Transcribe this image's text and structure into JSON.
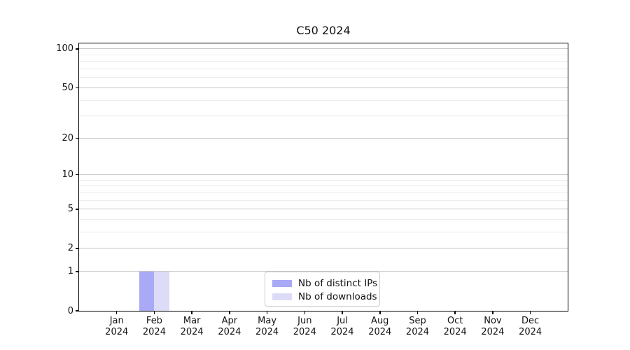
{
  "figure": {
    "title": "C50 2024"
  },
  "style": {
    "background": "#ffffff",
    "spine_color": "#000000",
    "major_grid_color": "#c6c6c6",
    "minor_grid_color": "#ececec",
    "text_color": "#111111",
    "legend_border_color": "#cccccc"
  },
  "y_axis": {
    "tick_values": [
      100,
      50,
      20,
      10,
      5,
      2,
      1,
      0
    ],
    "tick_labels": [
      "100",
      "50",
      "20",
      "10",
      "5",
      "2",
      "1",
      "0"
    ],
    "minor_tick_values": [
      3,
      4,
      6,
      7,
      8,
      9,
      30,
      40,
      60,
      70,
      80,
      90
    ]
  },
  "x_axis": {
    "months": [
      "Jan",
      "Feb",
      "Mar",
      "Apr",
      "May",
      "Jun",
      "Jul",
      "Aug",
      "Sep",
      "Oct",
      "Nov",
      "Dec"
    ],
    "year": "2024"
  },
  "chart_data": {
    "type": "bar",
    "title": "C50 2024",
    "categories": [
      "Jan 2024",
      "Feb 2024",
      "Mar 2024",
      "Apr 2024",
      "May 2024",
      "Jun 2024",
      "Jul 2024",
      "Aug 2024",
      "Sep 2024",
      "Oct 2024",
      "Nov 2024",
      "Dec 2024"
    ],
    "series": [
      {
        "name": "Nb of distinct IPs",
        "color": "#a9a9f6",
        "values": [
          0,
          1,
          0,
          0,
          0,
          0,
          0,
          0,
          0,
          0,
          0,
          0
        ]
      },
      {
        "name": "Nb of downloads",
        "color": "#dcdcf8",
        "values": [
          0,
          1,
          0,
          0,
          0,
          0,
          0,
          0,
          0,
          0,
          0,
          0
        ]
      }
    ],
    "xlabel": "",
    "ylabel": "",
    "yticks": [
      0,
      1,
      2,
      5,
      10,
      20,
      50,
      100
    ],
    "ylim": [
      0,
      110
    ],
    "scale": "symlog (y maps as log10(1+y))",
    "grid": "both",
    "legend_position": "lower center inside plot"
  }
}
